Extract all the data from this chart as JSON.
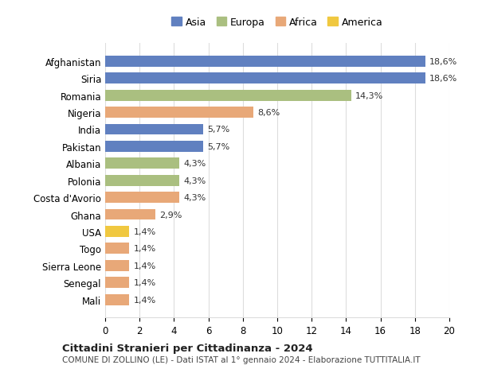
{
  "countries": [
    "Afghanistan",
    "Siria",
    "Romania",
    "Nigeria",
    "India",
    "Pakistan",
    "Albania",
    "Polonia",
    "Costa d'Avorio",
    "Ghana",
    "USA",
    "Togo",
    "Sierra Leone",
    "Senegal",
    "Mali"
  ],
  "values": [
    18.6,
    18.6,
    14.3,
    8.6,
    5.7,
    5.7,
    4.3,
    4.3,
    4.3,
    2.9,
    1.4,
    1.4,
    1.4,
    1.4,
    1.4
  ],
  "labels": [
    "18,6%",
    "18,6%",
    "14,3%",
    "8,6%",
    "5,7%",
    "5,7%",
    "4,3%",
    "4,3%",
    "4,3%",
    "2,9%",
    "1,4%",
    "1,4%",
    "1,4%",
    "1,4%",
    "1,4%"
  ],
  "continents": [
    "Asia",
    "Asia",
    "Europa",
    "Africa",
    "Asia",
    "Asia",
    "Europa",
    "Europa",
    "Africa",
    "Africa",
    "America",
    "Africa",
    "Africa",
    "Africa",
    "Africa"
  ],
  "colors": {
    "Asia": "#6080C0",
    "Europa": "#AABF80",
    "Africa": "#E8A878",
    "America": "#F0C840"
  },
  "legend_order": [
    "Asia",
    "Europa",
    "Africa",
    "America"
  ],
  "title": "Cittadini Stranieri per Cittadinanza - 2024",
  "subtitle": "COMUNE DI ZOLLINO (LE) - Dati ISTAT al 1° gennaio 2024 - Elaborazione TUTTITALIA.IT",
  "xlim": [
    0,
    20
  ],
  "xticks": [
    0,
    2,
    4,
    6,
    8,
    10,
    12,
    14,
    16,
    18,
    20
  ],
  "background_color": "#ffffff",
  "grid_color": "#dddddd"
}
